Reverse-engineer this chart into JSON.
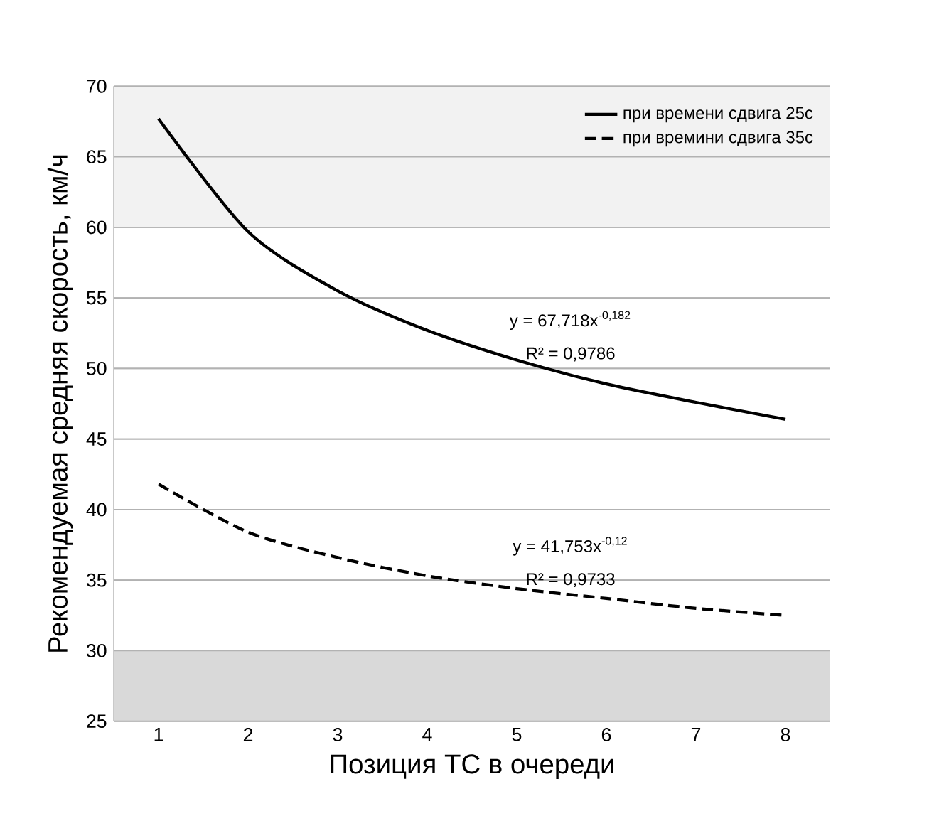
{
  "chart_data": {
    "type": "line",
    "xlabel": "Позиция ТС в очереди",
    "ylabel": "Рекомендуемая средняя скорость, км/ч",
    "x": [
      1,
      2,
      3,
      4,
      5,
      6,
      7,
      8
    ],
    "series": [
      {
        "name": "при времени сдвига 25с",
        "color": "#000000",
        "line_style": "solid",
        "values": [
          67.7,
          59.7,
          55.5,
          52.7,
          50.6,
          48.9,
          47.6,
          46.4
        ]
      },
      {
        "name": "при времини сдвига 35с",
        "color": "#000000",
        "line_style": "dashed",
        "values": [
          41.8,
          38.4,
          36.6,
          35.3,
          34.4,
          33.7,
          33.0,
          32.5
        ]
      }
    ],
    "xlim": [
      0.5,
      8.5
    ],
    "xticks": [
      1,
      2,
      3,
      4,
      5,
      6,
      7,
      8
    ],
    "ylim": [
      25,
      70
    ],
    "yticks": [
      25,
      30,
      35,
      40,
      45,
      50,
      55,
      60,
      65,
      70
    ],
    "bands": [
      {
        "axis": "y",
        "from": 60,
        "to": 70,
        "color": "#f2f2f2"
      },
      {
        "axis": "y",
        "from": 25,
        "to": 30,
        "color": "#d9d9d9"
      }
    ],
    "annotations": [
      "y = 67,718x$^{-0,182}$",
      "R² = 0,9786",
      "y = 41,753x$^{-0,12}$",
      "R² = 0,9733"
    ],
    "grid": "y",
    "legend": "top right",
    "marker": "none"
  }
}
